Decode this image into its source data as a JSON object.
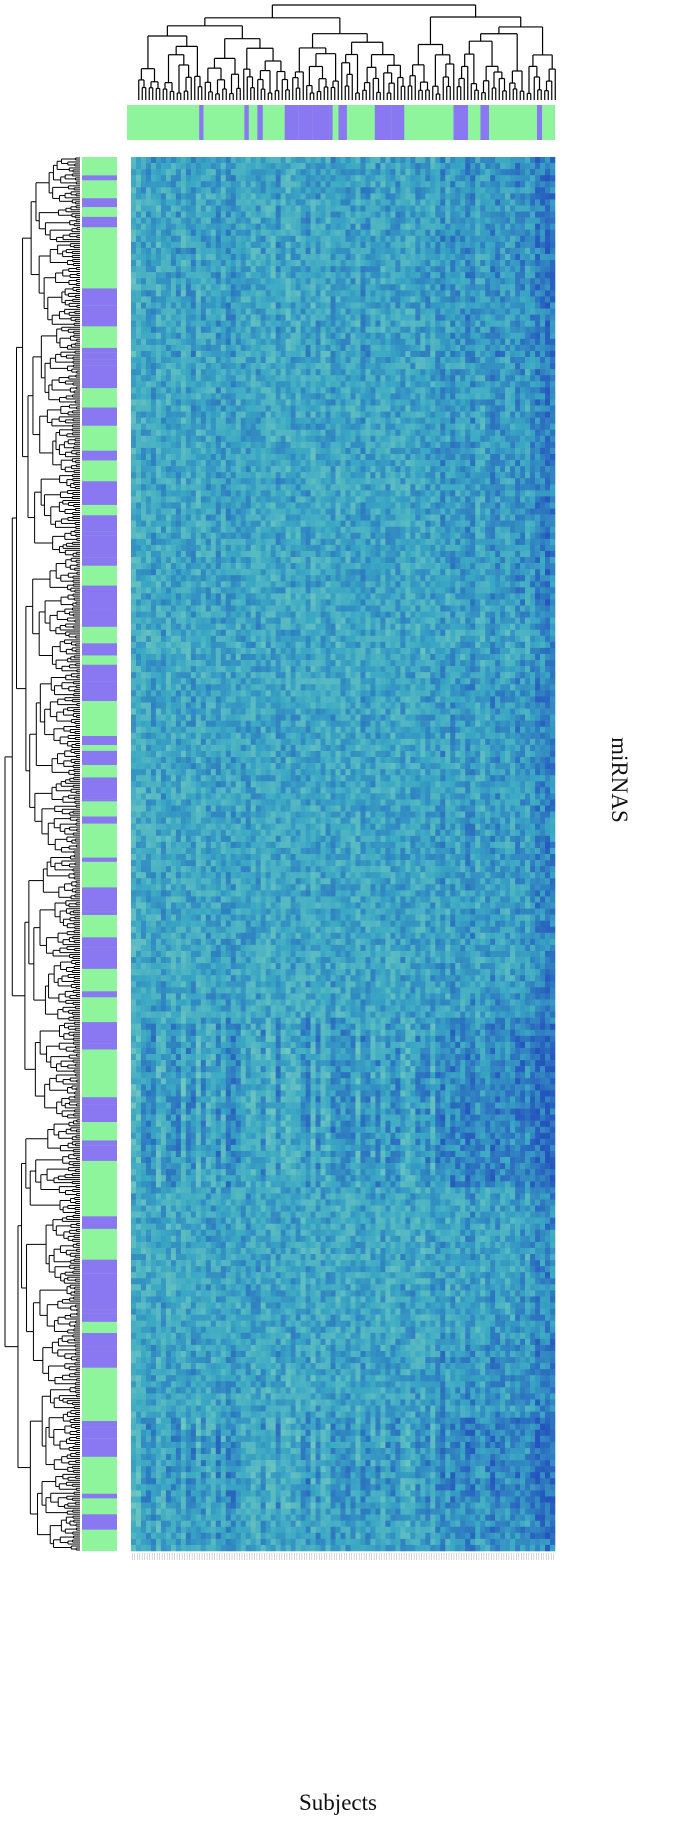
{
  "labels": {
    "x_axis": "Subjects",
    "y_axis": "miRNAS"
  }
}
